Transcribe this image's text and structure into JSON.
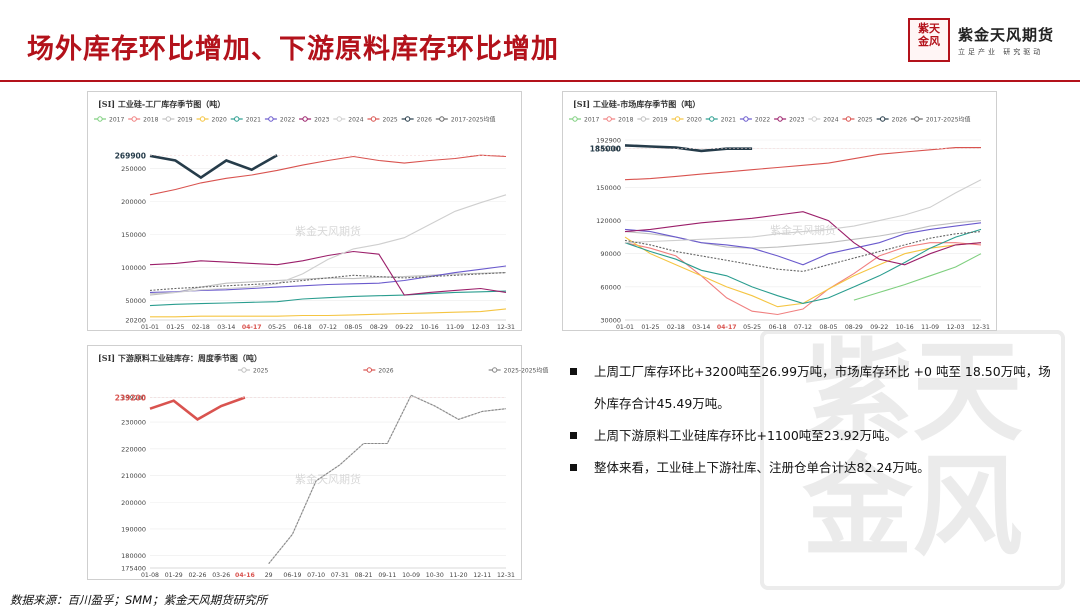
{
  "page": {
    "title": "场外库存环比增加、下游原料库存环比增加",
    "source": "数据来源：百川盈孚；SMM；紫金天风期货研究所"
  },
  "logo": {
    "seal": [
      "紫",
      "天",
      "金",
      "风"
    ],
    "name": "紫金天风期货",
    "slogan": "立足产业 研究驱动"
  },
  "bullets": [
    {
      "text": "上周工厂库存环比+3200吨至26.99万吨，市场库存环比 +0 吨至 18.50万吨，场外库存合计45.49万吨。"
    },
    {
      "text": "上周下游原料工业硅库存环比+1100吨至23.92万吨。"
    },
    {
      "text": "整体来看，工业硅上下游社库、注册仓单合计达82.24万吨。"
    }
  ],
  "chart_data": [
    {
      "type": "line",
      "title": "[SI] 工业硅-工厂库存季节图（吨）",
      "watermark": "紫金天风期货",
      "highlight_value": "269900",
      "highlight_date": "04-17",
      "x_ticks": [
        "01-01",
        "01-25",
        "02-18",
        "03-14",
        "04-17",
        "05-25",
        "06-18",
        "07-12",
        "08-05",
        "08-29",
        "09-22",
        "10-16",
        "11-09",
        "12-03",
        "12-31"
      ],
      "y_ticks": [
        "20200",
        "50000",
        "100000",
        "150000",
        "200000",
        "250000"
      ],
      "y_tick_values": [
        20200,
        50000,
        100000,
        150000,
        200000,
        250000
      ],
      "ylim": [
        20200,
        290000
      ],
      "series": [
        {
          "name": "2017",
          "color": "#7fcf7f",
          "values": []
        },
        {
          "name": "2018",
          "color": "#f08080",
          "values": []
        },
        {
          "name": "2019",
          "color": "#c0c0c0",
          "values": [
            58000,
            62000,
            70000,
            76000,
            78000,
            80000,
            82000,
            84000,
            83000,
            85000,
            86000,
            88000,
            90000,
            91000,
            92000
          ]
        },
        {
          "name": "2020",
          "color": "#f5c542",
          "values": [
            25000,
            25000,
            26000,
            26000,
            26000,
            26000,
            27000,
            27000,
            28000,
            29000,
            30000,
            31000,
            32000,
            33000,
            37000
          ]
        },
        {
          "name": "2021",
          "color": "#2a9d8f",
          "values": [
            42000,
            44000,
            45000,
            46000,
            47000,
            48000,
            52000,
            54000,
            56000,
            57000,
            58000,
            60000,
            62000,
            63000,
            64000
          ]
        },
        {
          "name": "2022",
          "color": "#6a5acd",
          "values": [
            62000,
            63000,
            65000,
            66000,
            68000,
            70000,
            72000,
            74000,
            75000,
            76000,
            80000,
            86000,
            92000,
            97000,
            102000
          ]
        },
        {
          "name": "2023",
          "color": "#9b1f6a",
          "values": [
            104000,
            106000,
            110000,
            108000,
            106000,
            104000,
            110000,
            118000,
            124000,
            120000,
            58000,
            62000,
            65000,
            68000,
            62000
          ]
        },
        {
          "name": "2024",
          "color": "#cfcfcf",
          "values": [
            60000,
            62000,
            66000,
            68000,
            70000,
            75000,
            90000,
            112000,
            128000,
            135000,
            145000,
            165000,
            185000,
            198000,
            210000
          ]
        },
        {
          "name": "2025",
          "color": "#d9534f",
          "values": [
            210000,
            218000,
            228000,
            235000,
            240000,
            247000,
            255000,
            262000,
            268000,
            262000,
            258000,
            262000,
            265000,
            270000,
            268000
          ]
        },
        {
          "name": "2026",
          "color": "#263c4a",
          "values": [
            269000,
            262000,
            236000,
            262000,
            248000,
            269900
          ]
        },
        {
          "name": "2017-2025均值",
          "color": "#666666",
          "values": [
            65000,
            68000,
            70000,
            72000,
            74000,
            76000,
            80000,
            84000,
            88000,
            86000,
            84000,
            86000,
            88000,
            90000,
            92000
          ]
        }
      ]
    },
    {
      "type": "line",
      "title": "[SI] 工业硅-市场库存季节图（吨）",
      "watermark": "紫金天风期货",
      "highlight_value": "185000",
      "highlight_date": "04-17",
      "x_ticks": [
        "01-01",
        "01-25",
        "02-18",
        "03-14",
        "04-17",
        "05-25",
        "06-18",
        "07-12",
        "08-05",
        "08-29",
        "09-22",
        "10-16",
        "11-09",
        "12-03",
        "12-31"
      ],
      "y_ticks": [
        "30000",
        "60000",
        "90000",
        "120000",
        "150000",
        "185000",
        "192900"
      ],
      "y_tick_values": [
        30000,
        60000,
        90000,
        120000,
        150000,
        185000,
        192900
      ],
      "ylim": [
        30000,
        192900
      ],
      "series": [
        {
          "name": "2017",
          "color": "#7fcf7f",
          "values": [
            null,
            null,
            null,
            null,
            null,
            null,
            null,
            null,
            null,
            48000,
            55000,
            62000,
            70000,
            78000,
            90000
          ]
        },
        {
          "name": "2018",
          "color": "#f08080",
          "values": [
            100000,
            95000,
            88000,
            70000,
            50000,
            38000,
            35000,
            40000,
            58000,
            72000,
            88000,
            96000,
            100000,
            100000,
            98000
          ]
        },
        {
          "name": "2019",
          "color": "#c0c0c0",
          "values": [
            110000,
            108000,
            105000,
            100000,
            96000,
            95000,
            96000,
            98000,
            100000,
            103000,
            106000,
            110000,
            115000,
            118000,
            120000
          ]
        },
        {
          "name": "2020",
          "color": "#f5c542",
          "values": [
            105000,
            90000,
            80000,
            70000,
            60000,
            52000,
            42000,
            45000,
            58000,
            70000,
            80000,
            90000,
            95000,
            98000,
            100000
          ]
        },
        {
          "name": "2021",
          "color": "#2a9d8f",
          "values": [
            100000,
            92000,
            85000,
            75000,
            70000,
            60000,
            52000,
            45000,
            50000,
            60000,
            70000,
            82000,
            95000,
            105000,
            112000
          ]
        },
        {
          "name": "2022",
          "color": "#6a5acd",
          "values": [
            112000,
            110000,
            105000,
            100000,
            98000,
            95000,
            88000,
            80000,
            90000,
            95000,
            100000,
            108000,
            112000,
            115000,
            118000
          ]
        },
        {
          "name": "2023",
          "color": "#9b1f6a",
          "values": [
            110000,
            112000,
            115000,
            118000,
            120000,
            122000,
            125000,
            128000,
            120000,
            100000,
            85000,
            80000,
            90000,
            98000,
            100000
          ]
        },
        {
          "name": "2024",
          "color": "#cfcfcf",
          "values": [
            100000,
            101000,
            102000,
            103000,
            104000,
            105000,
            108000,
            110000,
            112000,
            115000,
            120000,
            125000,
            132000,
            145000,
            157000
          ]
        },
        {
          "name": "2025",
          "color": "#d9534f",
          "values": [
            157000,
            158000,
            160000,
            162000,
            164000,
            166000,
            168000,
            170000,
            172000,
            176000,
            180000,
            182000,
            184000,
            186000,
            186000
          ]
        },
        {
          "name": "2026",
          "color": "#263c4a",
          "values": [
            188000,
            187000,
            186000,
            183000,
            185000,
            185000
          ]
        },
        {
          "name": "2017-2025均值",
          "color": "#666666",
          "values": [
            102000,
            98000,
            92000,
            88000,
            84000,
            80000,
            76000,
            74000,
            80000,
            86000,
            92000,
            98000,
            104000,
            108000,
            110000
          ]
        }
      ]
    },
    {
      "type": "line",
      "title": "[SI] 下游原料工业硅库存：周度季节图（吨）",
      "watermark": "紫金天风期货",
      "highlight_value": "239200",
      "highlight_date": "04-16",
      "x_ticks": [
        "01-08",
        "01-29",
        "02-26",
        "03-26",
        "04-16",
        "29",
        "06-19",
        "07-10",
        "07-31",
        "08-21",
        "09-11",
        "10-09",
        "10-30",
        "11-20",
        "12-11",
        "12-31"
      ],
      "y_ticks": [
        "175400",
        "180000",
        "190000",
        "200000",
        "210000",
        "220000",
        "230000",
        "239200"
      ],
      "y_tick_values": [
        175400,
        180000,
        190000,
        200000,
        210000,
        220000,
        230000,
        239200
      ],
      "ylim": [
        175400,
        242000
      ],
      "series": [
        {
          "name": "2025",
          "color": "#c0c0c0",
          "values": [
            null,
            null,
            null,
            null,
            null,
            177000,
            188000,
            208000,
            214000,
            222000,
            222000,
            240000,
            236000,
            231000,
            234000,
            235000
          ]
        },
        {
          "name": "2026",
          "color": "#d9534f",
          "values": [
            235000,
            238000,
            231000,
            236000,
            239200
          ]
        },
        {
          "name": "2025-2025均值",
          "color": "#888888",
          "values": [
            null,
            null,
            null,
            null,
            null,
            177000,
            188000,
            208000,
            214000,
            222000,
            222000,
            240000,
            236000,
            231000,
            234000,
            235000
          ]
        }
      ]
    }
  ]
}
